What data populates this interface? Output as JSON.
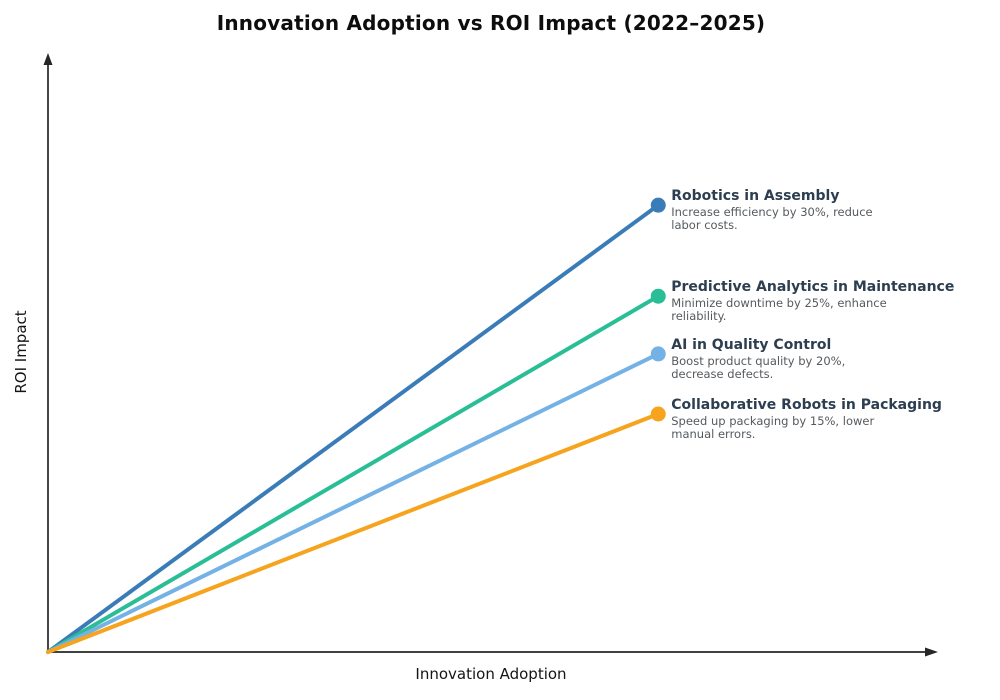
{
  "chart_data": {
    "type": "line",
    "title": "Innovation Adoption vs ROI Impact (2022–2025)",
    "xlabel": "Innovation Adoption",
    "ylabel": "ROI Impact",
    "x_range": [
      0,
      1
    ],
    "y_range": [
      0,
      1
    ],
    "grid": false,
    "tick_labels": false,
    "axis_arrows": true,
    "axis_color": "#262626",
    "label_title_color": "#2c3e50",
    "label_desc_color": "#555a5e",
    "series": [
      {
        "name": "Robotics in Assembly",
        "description": "Increase efficiency by 30%, reduce\nlabor costs.",
        "roi_percent": 30,
        "color": "#3a7cb8",
        "points": [
          [
            0,
            0
          ],
          [
            0.688,
            0.751
          ]
        ]
      },
      {
        "name": "Predictive Analytics in Maintenance",
        "description": "Minimize downtime by 25%, enhance\nreliability.",
        "roi_percent": 25,
        "color": "#29be96",
        "points": [
          [
            0,
            0
          ],
          [
            0.688,
            0.598
          ]
        ]
      },
      {
        "name": "AI in Quality Control",
        "description": "Boost product quality by 20%,\ndecrease defects.",
        "roi_percent": 20,
        "color": "#74b2e6",
        "points": [
          [
            0,
            0
          ],
          [
            0.688,
            0.501
          ]
        ]
      },
      {
        "name": "Collaborative Robots in Packaging",
        "description": "Speed up packaging by 15%, lower\nmanual errors.",
        "roi_percent": 15,
        "color": "#f6a31e",
        "points": [
          [
            0,
            0
          ],
          [
            0.688,
            0.4
          ]
        ]
      }
    ]
  }
}
